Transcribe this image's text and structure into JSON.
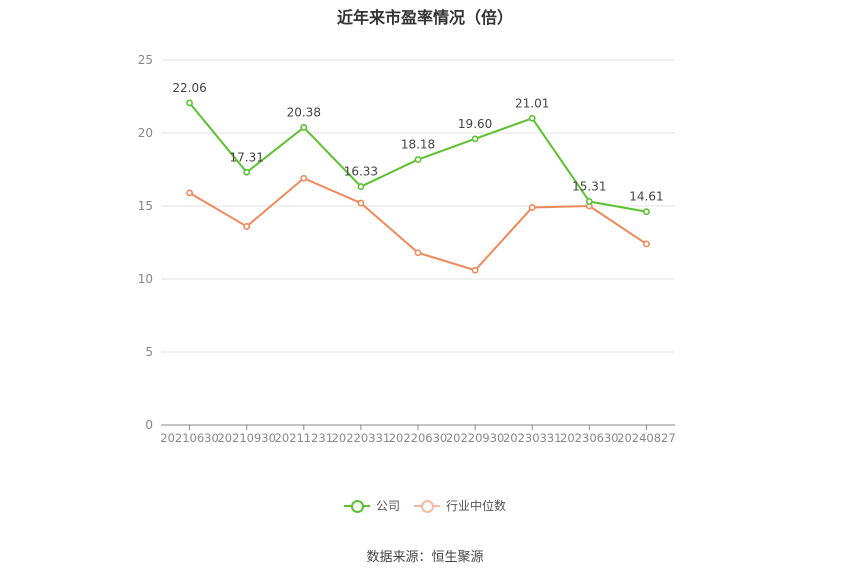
{
  "chart_data": {
    "type": "line",
    "title": "近年来市盈率情况（倍）",
    "categories": [
      "20210630",
      "20210930",
      "20211231",
      "20220331",
      "20220630",
      "20220930",
      "20230331",
      "20230630",
      "20240827"
    ],
    "series": [
      {
        "name": "公司",
        "color": "#5cc130",
        "values": [
          22.06,
          17.31,
          20.38,
          16.33,
          18.18,
          19.6,
          21.01,
          15.31,
          14.61
        ],
        "labels": [
          "22.06",
          "17.31",
          "20.38",
          "16.33",
          "18.18",
          "19.60",
          "21.01",
          "15.31",
          "14.61"
        ]
      },
      {
        "name": "行业中位数",
        "color": "#f0895a",
        "values": [
          15.9,
          13.6,
          16.9,
          15.2,
          11.8,
          10.6,
          14.9,
          15.0,
          12.4
        ]
      }
    ],
    "yticks": [
      "0",
      "5",
      "10",
      "15",
      "20",
      "25"
    ],
    "ylim": [
      0,
      25
    ],
    "grid": true,
    "legend_position": "bottom"
  },
  "source": "数据来源：恒生聚源"
}
